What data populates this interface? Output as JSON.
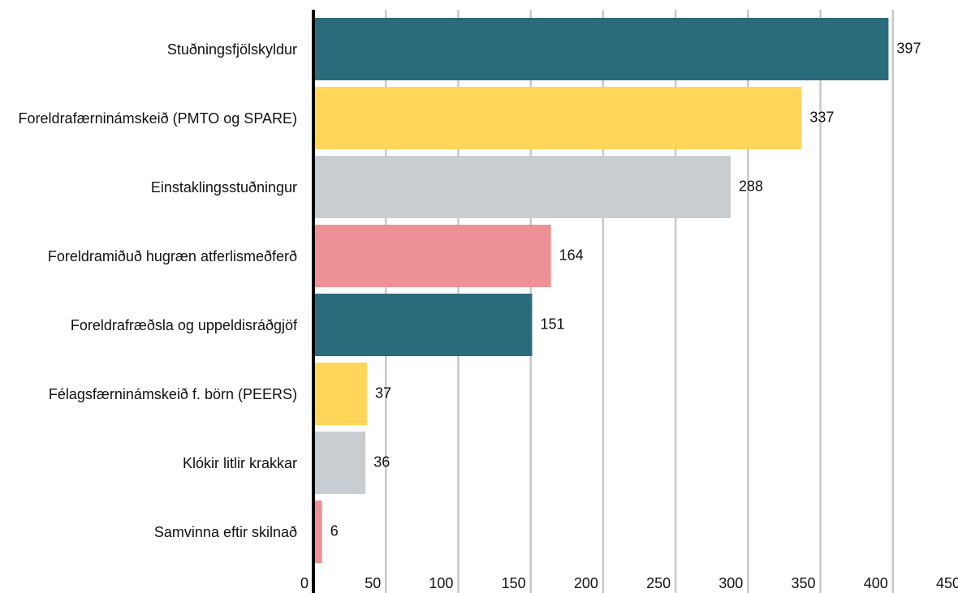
{
  "chart_data": {
    "type": "bar",
    "orientation": "horizontal",
    "categories": [
      "Stuðningsfjölskyldur",
      "Foreldrafærninámskeið (PMTO og SPARE)",
      "Einstaklingsstuðningur",
      "Foreldramiðuð hugræn atferlismeðferð",
      "Foreldrafræðsla og uppeldisráðgjöf",
      "Félagsfærninámskeið f. börn (PEERS)",
      "Klókir litlir krakkar",
      "Samvinna eftir skilnað"
    ],
    "values": [
      397,
      337,
      288,
      164,
      151,
      37,
      36,
      6
    ],
    "colors": [
      "#2a6b7c",
      "#ffd55a",
      "#c8cdd1",
      "#ee9196",
      "#2a6b7c",
      "#ffd55a",
      "#c8cdd1",
      "#ee9196"
    ],
    "xlim": [
      0,
      450
    ],
    "xticks": [
      0,
      50,
      100,
      150,
      200,
      250,
      300,
      350,
      400,
      450
    ],
    "grid": true
  }
}
